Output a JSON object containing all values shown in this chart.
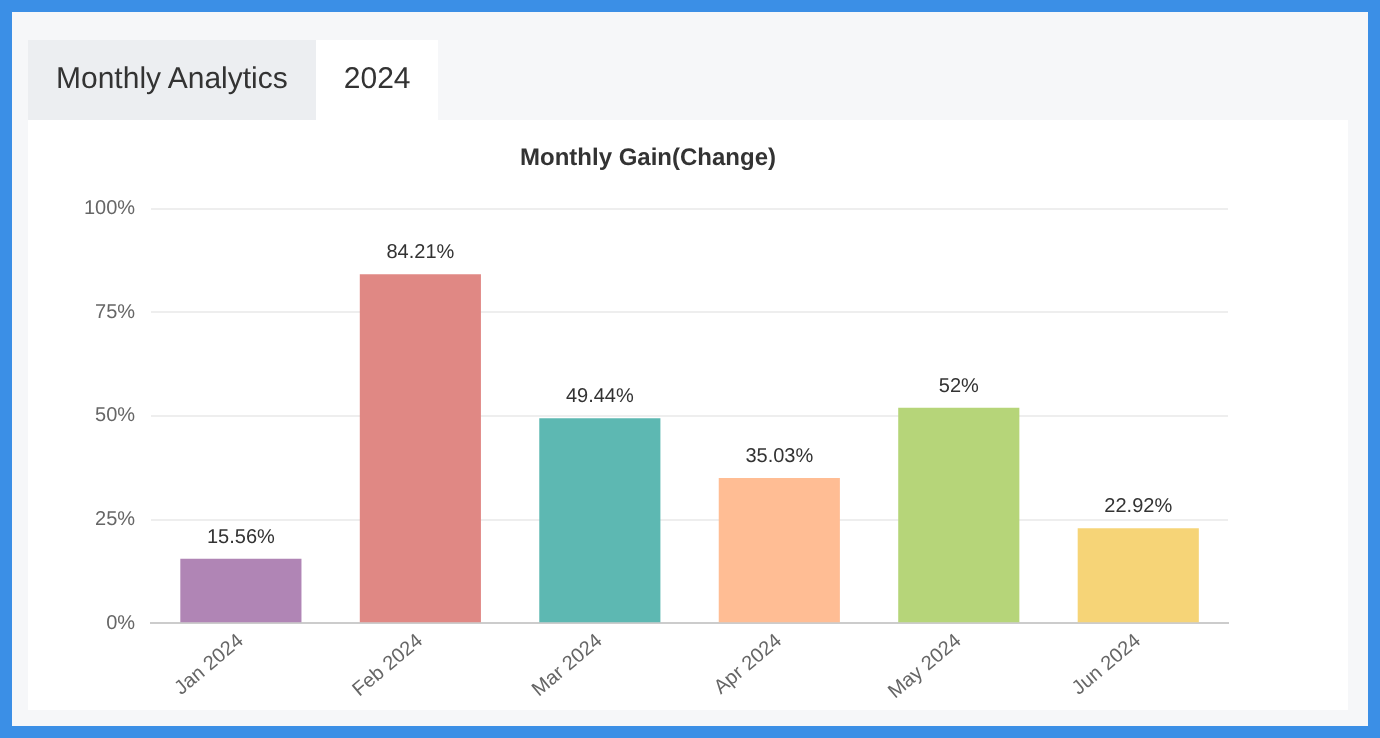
{
  "chart_data": {
    "type": "bar",
    "title": "Monthly Gain(Change)",
    "annotations": [
      "Monthly Analytics",
      "2024"
    ],
    "categories": [
      "Jan 2024",
      "Feb 2024",
      "Mar 2024",
      "Apr 2024",
      "May 2024",
      "Jun 2024"
    ],
    "values": [
      15.56,
      84.21,
      49.44,
      35.03,
      52,
      22.92
    ],
    "value_labels": [
      "15.56%",
      "84.21%",
      "49.44%",
      "35.03%",
      "52%",
      "22.92%"
    ],
    "colors": [
      "#b085b5",
      "#e08884",
      "#5db8b2",
      "#ffbd94",
      "#b6d579",
      "#f6d477"
    ],
    "ylim": [
      0,
      100
    ],
    "yticks": [
      {
        "value": 0,
        "label": "0%"
      },
      {
        "value": 25,
        "label": "25%"
      },
      {
        "value": 50,
        "label": "50%"
      },
      {
        "value": 75,
        "label": "75%"
      },
      {
        "value": 100,
        "label": "100%"
      }
    ],
    "grid": "y",
    "legend": false
  }
}
